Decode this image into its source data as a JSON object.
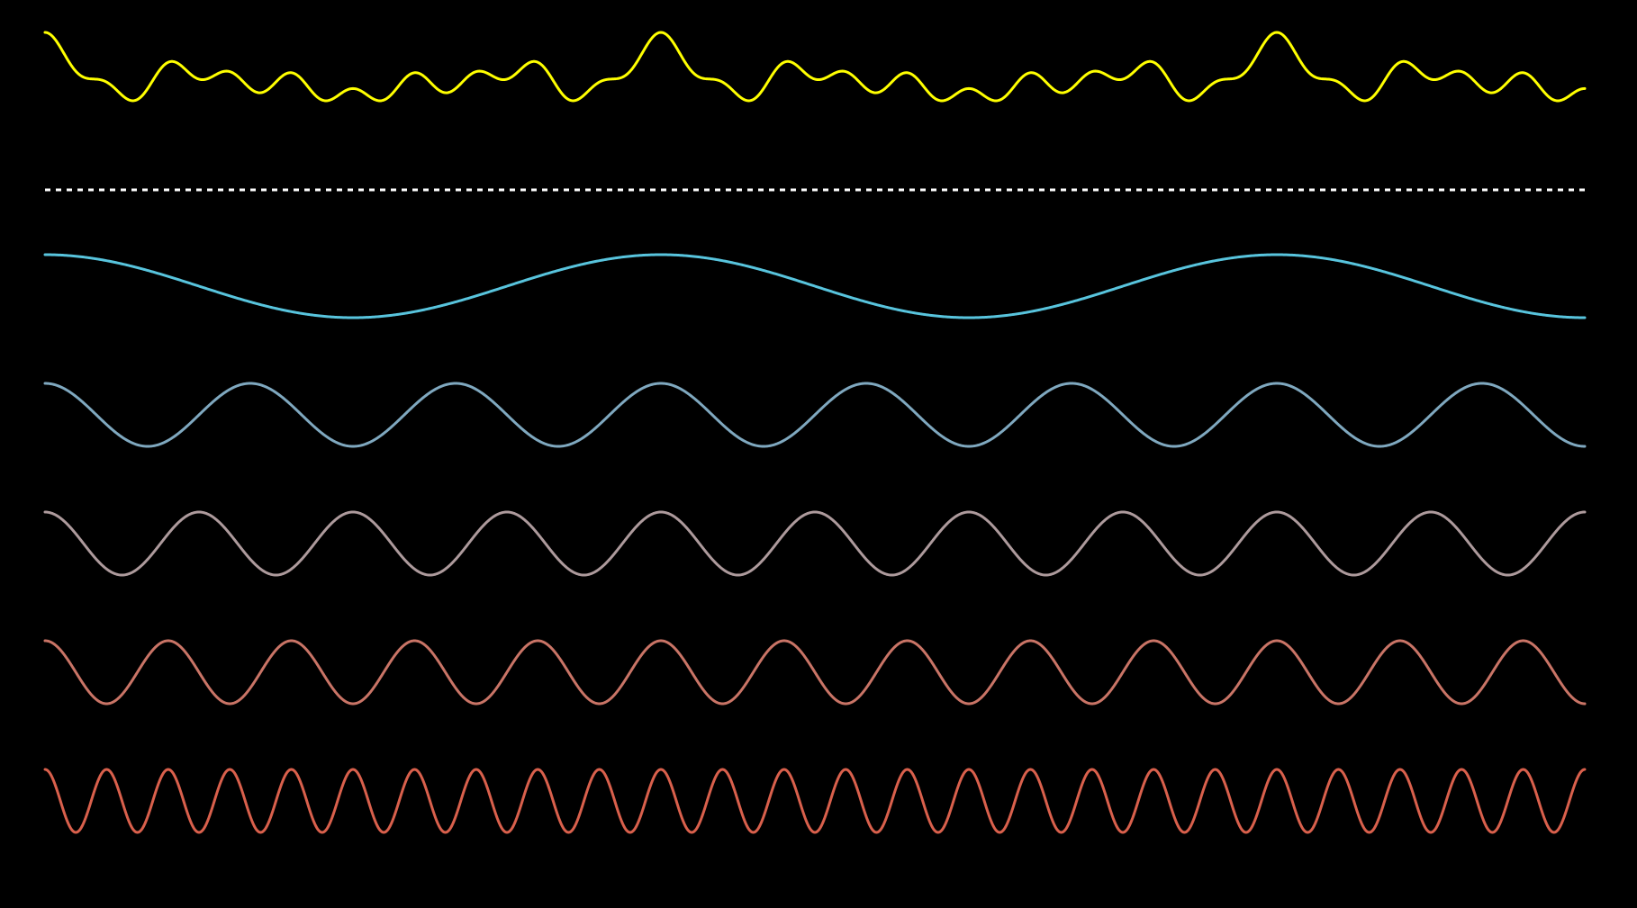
{
  "chart_data": {
    "type": "line",
    "description_of_structure": "",
    "background": "#000000",
    "separator": {
      "style": "dotted",
      "color": "#ffffff"
    },
    "sum_wave": {
      "color": "#ffff00",
      "components": [
        "wave-1",
        "wave-2",
        "wave-3",
        "wave-4",
        "wave-5"
      ]
    },
    "waves": [
      {
        "id": "wave-1",
        "color": "#58c4dd",
        "cycles": 2.5,
        "phase_deg": 90
      },
      {
        "id": "wave-2",
        "color": "#7fa8bf",
        "cycles": 7.5,
        "phase_deg": 90
      },
      {
        "id": "wave-3",
        "color": "#ad9a9c",
        "cycles": 10,
        "phase_deg": 90
      },
      {
        "id": "wave-4",
        "color": "#c97466",
        "cycles": 12.5,
        "phase_deg": 90
      },
      {
        "id": "wave-5",
        "color": "#d9604c",
        "cycles": 25,
        "phase_deg": 90
      }
    ]
  }
}
